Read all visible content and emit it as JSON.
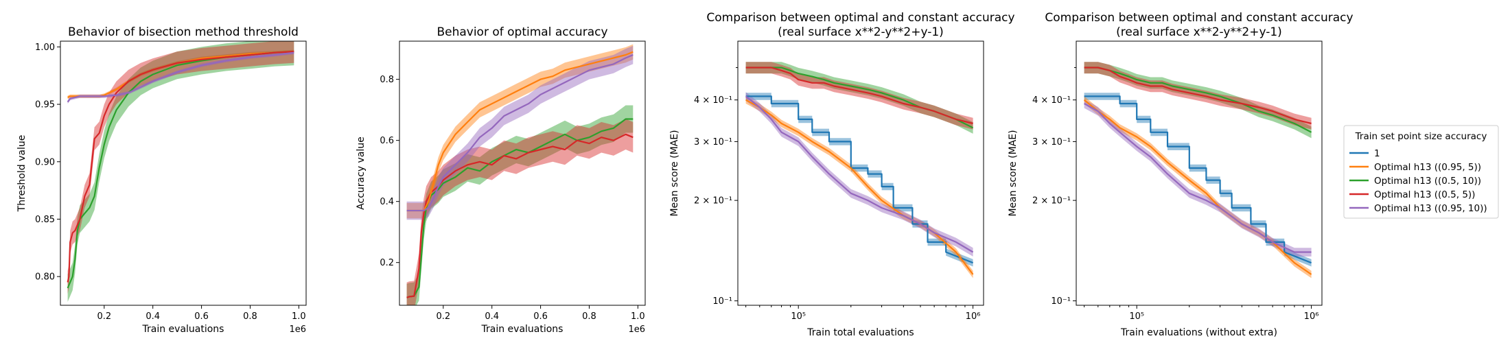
{
  "colors": {
    "blue": "#1f77b4",
    "orange": "#ff7f0e",
    "green": "#2ca02c",
    "red": "#d62728",
    "purple": "#9467bd"
  },
  "legend": {
    "title": "Train set point size accuracy",
    "placement": "right-outside",
    "entries": [
      {
        "label": "1",
        "color": "#1f77b4"
      },
      {
        "label": "Optimal h13 ((0.95, 5))",
        "color": "#ff7f0e"
      },
      {
        "label": "Optimal h13 ((0.5, 10))",
        "color": "#2ca02c"
      },
      {
        "label": "Optimal h13 ((0.5, 5))",
        "color": "#d62728"
      },
      {
        "label": "Optimal h13 ((0.95, 10))",
        "color": "#9467bd"
      }
    ]
  },
  "chart_data": [
    {
      "type": "line",
      "title": "Behavior of bisection method threshold",
      "xlabel": "Train evaluations",
      "ylabel": "Threshold value",
      "x_offset_text": "1e6",
      "xlim": [
        0.02,
        1.03
      ],
      "ylim": [
        0.775,
        1.005
      ],
      "xticks": [
        0.2,
        0.4,
        0.6,
        0.8,
        1.0
      ],
      "xtick_labels": [
        "0.2",
        "0.4",
        "0.6",
        "0.8",
        "1.0"
      ],
      "yticks": [
        0.8,
        0.85,
        0.9,
        0.95,
        1.0
      ],
      "ytick_labels": [
        "0.80",
        "0.85",
        "0.90",
        "0.95",
        "1.00"
      ],
      "series": [
        {
          "color": "#ff7f0e",
          "x": [
            0.05,
            0.06,
            0.08,
            0.1,
            0.12,
            0.14,
            0.16,
            0.18,
            0.2,
            0.25,
            0.3,
            0.35,
            0.4,
            0.5,
            0.6,
            0.7,
            0.8,
            0.9,
            0.98
          ],
          "y": [
            0.956,
            0.957,
            0.957,
            0.957,
            0.957,
            0.957,
            0.957,
            0.957,
            0.958,
            0.963,
            0.97,
            0.976,
            0.98,
            0.986,
            0.99,
            0.992,
            0.994,
            0.995,
            0.996
          ],
          "band": 0.0015
        },
        {
          "color": "#2ca02c",
          "x": [
            0.05,
            0.06,
            0.07,
            0.08,
            0.09,
            0.1,
            0.12,
            0.14,
            0.16,
            0.18,
            0.2,
            0.22,
            0.25,
            0.3,
            0.35,
            0.4,
            0.5,
            0.6,
            0.7,
            0.8,
            0.9,
            0.98
          ],
          "y": [
            0.79,
            0.795,
            0.8,
            0.815,
            0.84,
            0.85,
            0.855,
            0.86,
            0.87,
            0.895,
            0.915,
            0.93,
            0.945,
            0.96,
            0.97,
            0.976,
            0.984,
            0.988,
            0.991,
            0.993,
            0.995,
            0.996
          ],
          "band": 0.012
        },
        {
          "color": "#d62728",
          "x": [
            0.05,
            0.055,
            0.06,
            0.07,
            0.08,
            0.1,
            0.12,
            0.14,
            0.16,
            0.18,
            0.2,
            0.22,
            0.25,
            0.3,
            0.35,
            0.4,
            0.5,
            0.6,
            0.7,
            0.8,
            0.9,
            0.98
          ],
          "y": [
            0.795,
            0.8,
            0.83,
            0.838,
            0.84,
            0.85,
            0.87,
            0.88,
            0.92,
            0.925,
            0.94,
            0.95,
            0.96,
            0.97,
            0.976,
            0.98,
            0.986,
            0.989,
            0.991,
            0.993,
            0.995,
            0.996
          ],
          "band": 0.01
        },
        {
          "color": "#9467bd",
          "x": [
            0.05,
            0.06,
            0.08,
            0.1,
            0.15,
            0.2,
            0.25,
            0.3,
            0.35,
            0.4,
            0.5,
            0.6,
            0.7,
            0.8,
            0.9,
            0.98
          ],
          "y": [
            0.952,
            0.955,
            0.956,
            0.957,
            0.957,
            0.957,
            0.958,
            0.96,
            0.965,
            0.97,
            0.978,
            0.984,
            0.988,
            0.991,
            0.993,
            0.995
          ],
          "band": 0.0015
        }
      ]
    },
    {
      "type": "line",
      "title": "Behavior of optimal accuracy",
      "xlabel": "Train evaluations",
      "ylabel": "Accuracy value",
      "x_offset_text": "1e6",
      "xlim": [
        0.02,
        1.03
      ],
      "ylim": [
        0.06,
        0.925
      ],
      "xticks": [
        0.2,
        0.4,
        0.6,
        0.8,
        1.0
      ],
      "xtick_labels": [
        "0.2",
        "0.4",
        "0.6",
        "0.8",
        "1.0"
      ],
      "yticks": [
        0.2,
        0.4,
        0.6,
        0.8
      ],
      "ytick_labels": [
        "0.2",
        "0.4",
        "0.6",
        "0.8"
      ],
      "series": [
        {
          "color": "#2ca02c",
          "x": [
            0.05,
            0.06,
            0.08,
            0.1,
            0.11,
            0.12,
            0.13,
            0.15,
            0.18,
            0.2,
            0.25,
            0.3,
            0.35,
            0.4,
            0.45,
            0.5,
            0.55,
            0.6,
            0.65,
            0.7,
            0.75,
            0.8,
            0.85,
            0.9,
            0.95,
            0.98
          ],
          "y": [
            0.085,
            0.088,
            0.09,
            0.12,
            0.22,
            0.32,
            0.38,
            0.42,
            0.44,
            0.46,
            0.48,
            0.51,
            0.5,
            0.53,
            0.55,
            0.57,
            0.56,
            0.58,
            0.6,
            0.62,
            0.6,
            0.61,
            0.63,
            0.64,
            0.67,
            0.67
          ],
          "band": 0.045
        },
        {
          "color": "#d62728",
          "x": [
            0.05,
            0.06,
            0.08,
            0.1,
            0.11,
            0.12,
            0.13,
            0.15,
            0.18,
            0.2,
            0.25,
            0.3,
            0.35,
            0.4,
            0.45,
            0.5,
            0.55,
            0.6,
            0.65,
            0.7,
            0.75,
            0.8,
            0.85,
            0.9,
            0.95,
            0.98
          ],
          "y": [
            0.085,
            0.088,
            0.09,
            0.18,
            0.3,
            0.36,
            0.4,
            0.43,
            0.45,
            0.47,
            0.5,
            0.52,
            0.53,
            0.52,
            0.55,
            0.54,
            0.56,
            0.57,
            0.58,
            0.57,
            0.6,
            0.59,
            0.61,
            0.6,
            0.62,
            0.61
          ],
          "band": 0.05
        },
        {
          "color": "#ff7f0e",
          "x": [
            0.05,
            0.06,
            0.08,
            0.1,
            0.12,
            0.14,
            0.16,
            0.18,
            0.2,
            0.25,
            0.3,
            0.35,
            0.4,
            0.45,
            0.5,
            0.55,
            0.6,
            0.65,
            0.7,
            0.75,
            0.8,
            0.85,
            0.9,
            0.95,
            0.98
          ],
          "y": [
            0.37,
            0.37,
            0.37,
            0.37,
            0.37,
            0.4,
            0.46,
            0.52,
            0.56,
            0.62,
            0.66,
            0.7,
            0.72,
            0.74,
            0.76,
            0.78,
            0.8,
            0.81,
            0.83,
            0.84,
            0.85,
            0.86,
            0.87,
            0.88,
            0.89
          ],
          "band": 0.025
        },
        {
          "color": "#9467bd",
          "x": [
            0.05,
            0.06,
            0.08,
            0.1,
            0.12,
            0.14,
            0.16,
            0.18,
            0.2,
            0.25,
            0.3,
            0.35,
            0.4,
            0.45,
            0.5,
            0.55,
            0.6,
            0.65,
            0.7,
            0.75,
            0.8,
            0.85,
            0.9,
            0.95,
            0.98
          ],
          "y": [
            0.37,
            0.37,
            0.37,
            0.37,
            0.37,
            0.38,
            0.41,
            0.45,
            0.48,
            0.52,
            0.56,
            0.61,
            0.64,
            0.68,
            0.7,
            0.72,
            0.75,
            0.77,
            0.79,
            0.81,
            0.83,
            0.84,
            0.85,
            0.87,
            0.88
          ],
          "band": 0.03
        }
      ]
    },
    {
      "type": "line",
      "title": "Comparison between optimal and constant accuracy",
      "subtitle": "(real surface x**2-y**2+y-1)",
      "xlabel": "Train total evaluations",
      "ylabel": "Mean score (MAE)",
      "xscale": "log",
      "yscale": "log",
      "xlim": [
        45000,
        1150000
      ],
      "ylim": [
        0.097,
        0.6
      ],
      "xticks": [
        100000,
        1000000
      ],
      "xtick_labels": [
        "10⁵",
        "10⁶"
      ],
      "yticks": [
        0.1,
        0.2,
        0.3,
        0.4
      ],
      "ytick_labels": [
        "10⁻¹",
        "2 × 10⁻¹",
        "3 × 10⁻¹",
        "4 × 10⁻¹"
      ],
      "series": [
        {
          "color": "#2ca02c",
          "x": [
            50000,
            60000,
            70000,
            80000,
            90000,
            100000,
            120000,
            140000,
            160000,
            200000,
            250000,
            300000,
            400000,
            500000,
            600000,
            800000,
            1000000
          ],
          "y": [
            0.5,
            0.5,
            0.5,
            0.5,
            0.49,
            0.48,
            0.47,
            0.46,
            0.45,
            0.44,
            0.43,
            0.42,
            0.4,
            0.38,
            0.37,
            0.35,
            0.33
          ],
          "band": 0.04
        },
        {
          "color": "#d62728",
          "x": [
            50000,
            60000,
            70000,
            80000,
            90000,
            100000,
            120000,
            140000,
            160000,
            200000,
            250000,
            300000,
            400000,
            500000,
            600000,
            800000,
            1000000
          ],
          "y": [
            0.5,
            0.5,
            0.5,
            0.49,
            0.48,
            0.46,
            0.45,
            0.45,
            0.44,
            0.43,
            0.42,
            0.41,
            0.39,
            0.38,
            0.37,
            0.35,
            0.34
          ],
          "band": 0.04
        },
        {
          "color": "#1f77b4",
          "x": [
            50000,
            70000,
            70000,
            100000,
            100000,
            120000,
            120000,
            150000,
            150000,
            200000,
            200000,
            250000,
            250000,
            300000,
            300000,
            350000,
            350000,
            450000,
            450000,
            550000,
            550000,
            700000,
            700000,
            1000000
          ],
          "y": [
            0.41,
            0.41,
            0.39,
            0.39,
            0.35,
            0.35,
            0.32,
            0.32,
            0.3,
            0.3,
            0.25,
            0.25,
            0.24,
            0.24,
            0.22,
            0.22,
            0.19,
            0.19,
            0.17,
            0.17,
            0.15,
            0.15,
            0.14,
            0.13
          ],
          "band": 0.025
        },
        {
          "color": "#ff7f0e",
          "x": [
            50000,
            60000,
            70000,
            80000,
            100000,
            120000,
            150000,
            200000,
            250000,
            300000,
            400000,
            500000,
            600000,
            800000,
            1000000
          ],
          "y": [
            0.4,
            0.38,
            0.36,
            0.34,
            0.32,
            0.3,
            0.28,
            0.25,
            0.22,
            0.2,
            0.18,
            0.17,
            0.16,
            0.14,
            0.12
          ],
          "band": 0.025
        },
        {
          "color": "#9467bd",
          "x": [
            50000,
            60000,
            70000,
            80000,
            100000,
            120000,
            150000,
            200000,
            250000,
            300000,
            400000,
            500000,
            600000,
            800000,
            1000000
          ],
          "y": [
            0.41,
            0.38,
            0.35,
            0.32,
            0.3,
            0.27,
            0.24,
            0.21,
            0.2,
            0.19,
            0.18,
            0.17,
            0.16,
            0.15,
            0.14
          ],
          "band": 0.03
        }
      ]
    },
    {
      "type": "line",
      "title": "Comparison between optimal and constant accuracy",
      "subtitle": "(real surface x**2-y**2+y-1)",
      "xlabel": "Train evaluations (without extra)",
      "ylabel": "Mean score (MAE)",
      "xscale": "log",
      "yscale": "log",
      "xlim": [
        45000,
        1150000
      ],
      "ylim": [
        0.097,
        0.6
      ],
      "xticks": [
        100000,
        1000000
      ],
      "xtick_labels": [
        "10⁵",
        "10⁶"
      ],
      "yticks": [
        0.1,
        0.2,
        0.3,
        0.4
      ],
      "ytick_labels": [
        "10⁻¹",
        "2 × 10⁻¹",
        "3 × 10⁻¹",
        "4 × 10⁻¹"
      ],
      "series": [
        {
          "color": "#2ca02c",
          "x": [
            50000,
            60000,
            70000,
            80000,
            90000,
            100000,
            120000,
            140000,
            160000,
            200000,
            250000,
            300000,
            400000,
            500000,
            600000,
            800000,
            1000000
          ],
          "y": [
            0.5,
            0.5,
            0.49,
            0.48,
            0.47,
            0.46,
            0.45,
            0.45,
            0.44,
            0.43,
            0.42,
            0.41,
            0.39,
            0.37,
            0.36,
            0.34,
            0.32
          ],
          "band": 0.04
        },
        {
          "color": "#d62728",
          "x": [
            50000,
            60000,
            70000,
            80000,
            90000,
            100000,
            120000,
            140000,
            160000,
            200000,
            250000,
            300000,
            400000,
            500000,
            600000,
            800000,
            1000000
          ],
          "y": [
            0.5,
            0.5,
            0.49,
            0.47,
            0.46,
            0.45,
            0.44,
            0.44,
            0.43,
            0.42,
            0.41,
            0.4,
            0.39,
            0.38,
            0.37,
            0.35,
            0.34
          ],
          "band": 0.04
        },
        {
          "color": "#1f77b4",
          "x": [
            50000,
            80000,
            80000,
            100000,
            100000,
            120000,
            120000,
            150000,
            150000,
            200000,
            200000,
            250000,
            250000,
            300000,
            300000,
            350000,
            350000,
            450000,
            450000,
            550000,
            550000,
            700000,
            700000,
            1000000
          ],
          "y": [
            0.41,
            0.41,
            0.39,
            0.39,
            0.35,
            0.35,
            0.32,
            0.32,
            0.29,
            0.29,
            0.25,
            0.25,
            0.23,
            0.23,
            0.21,
            0.21,
            0.19,
            0.19,
            0.17,
            0.17,
            0.15,
            0.15,
            0.14,
            0.13
          ],
          "band": 0.025
        },
        {
          "color": "#ff7f0e",
          "x": [
            50000,
            60000,
            70000,
            80000,
            100000,
            120000,
            150000,
            200000,
            250000,
            300000,
            400000,
            500000,
            600000,
            800000,
            1000000
          ],
          "y": [
            0.4,
            0.37,
            0.35,
            0.33,
            0.31,
            0.29,
            0.26,
            0.23,
            0.21,
            0.19,
            0.17,
            0.16,
            0.15,
            0.13,
            0.12
          ],
          "band": 0.025
        },
        {
          "color": "#9467bd",
          "x": [
            50000,
            60000,
            70000,
            80000,
            100000,
            120000,
            150000,
            200000,
            250000,
            300000,
            400000,
            500000,
            600000,
            800000,
            1000000
          ],
          "y": [
            0.39,
            0.37,
            0.34,
            0.32,
            0.29,
            0.27,
            0.24,
            0.21,
            0.2,
            0.19,
            0.17,
            0.16,
            0.15,
            0.14,
            0.14
          ],
          "band": 0.03
        }
      ]
    }
  ]
}
